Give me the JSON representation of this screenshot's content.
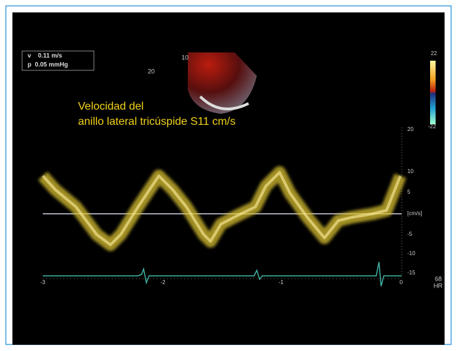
{
  "overlay": {
    "velocity": "v    0.11 m/s",
    "pressure": "p  0.05 mmHg"
  },
  "sector": {
    "depth_labels": [
      "10",
      "20"
    ]
  },
  "caption": [
    "Velocidad del",
    "anillo lateral tricúspide S11 cm/s"
  ],
  "color_scale": {
    "max": "22",
    "min": "-22"
  },
  "velocity_axis": {
    "ticks": [
      "20",
      "10",
      "5",
      "[cm/s]",
      "-5",
      "-10",
      "-15"
    ]
  },
  "time_axis": {
    "ticks": [
      "-3",
      "-2",
      "-1",
      "0"
    ]
  },
  "heart_rate": {
    "value": "68",
    "label": "HR"
  }
}
